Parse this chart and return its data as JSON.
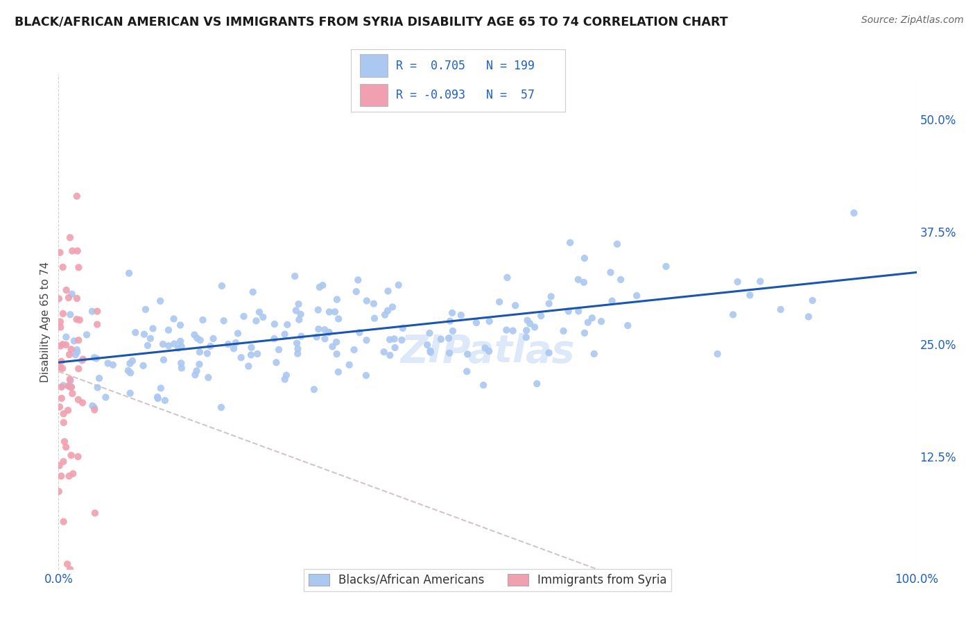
{
  "title": "BLACK/AFRICAN AMERICAN VS IMMIGRANTS FROM SYRIA DISABILITY AGE 65 TO 74 CORRELATION CHART",
  "source": "Source: ZipAtlas.com",
  "ylabel": "Disability Age 65 to 74",
  "blue_R": 0.705,
  "blue_N": 199,
  "pink_R": -0.093,
  "pink_N": 57,
  "blue_label": "Blacks/African Americans",
  "pink_label": "Immigrants from Syria",
  "blue_color": "#aac8f0",
  "blue_line_color": "#1a55b0",
  "pink_color": "#f0a0b0",
  "pink_line_color": "#c06070",
  "watermark": "ZIPatlas",
  "xlim": [
    0,
    100
  ],
  "ylim": [
    0,
    55
  ],
  "yticklabels_right": [
    "12.5%",
    "25.0%",
    "37.5%",
    "50.0%"
  ],
  "yticklabels_right_vals": [
    12.5,
    25.0,
    37.5,
    50.0
  ],
  "background_color": "#ffffff",
  "seed": 7
}
